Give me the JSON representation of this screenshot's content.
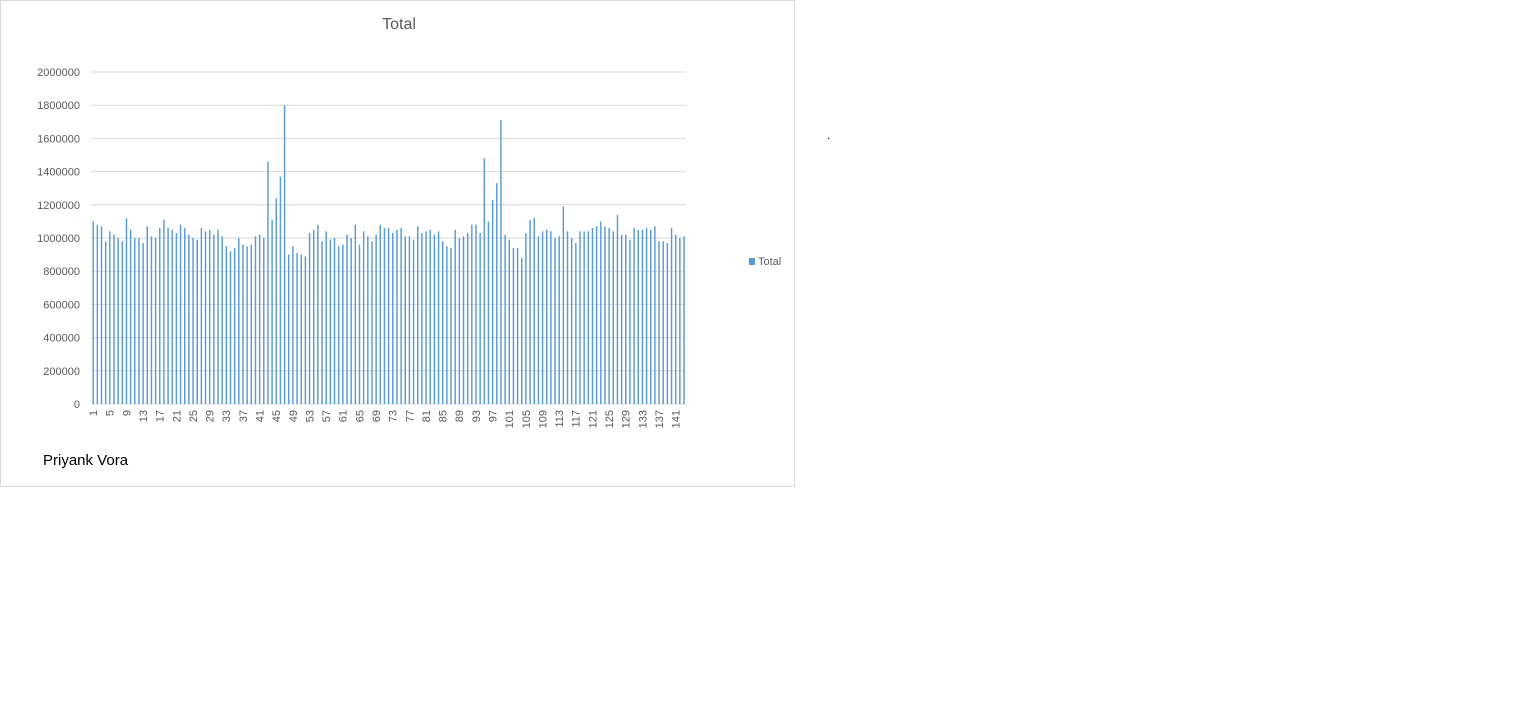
{
  "author": "Priyank Vora",
  "stray_mark": ".",
  "colors": {
    "bar": "#5b9bd5",
    "grid": "#d9d9d9",
    "text": "#595959",
    "border": "#d9d9d9"
  },
  "chart_data": {
    "type": "bar",
    "title": "Total",
    "xlabel": "",
    "ylabel": "",
    "ylim": [
      0,
      2000000
    ],
    "yticks": [
      0,
      200000,
      400000,
      600000,
      800000,
      1000000,
      1200000,
      1400000,
      1600000,
      1800000,
      2000000
    ],
    "x_tick_labels": [
      "1",
      "5",
      "9",
      "13",
      "17",
      "21",
      "25",
      "29",
      "33",
      "37",
      "41",
      "45",
      "49",
      "53",
      "57",
      "61",
      "65",
      "69",
      "73",
      "77",
      "81",
      "85",
      "89",
      "93",
      "97",
      "101",
      "105",
      "109",
      "113",
      "117",
      "121",
      "125",
      "129",
      "133",
      "137",
      "141"
    ],
    "legend": {
      "entries": [
        "Total"
      ],
      "position": "right"
    },
    "grid": true,
    "categories": [
      1,
      2,
      3,
      4,
      5,
      6,
      7,
      8,
      9,
      10,
      11,
      12,
      13,
      14,
      15,
      16,
      17,
      18,
      19,
      20,
      21,
      22,
      23,
      24,
      25,
      26,
      27,
      28,
      29,
      30,
      31,
      32,
      33,
      34,
      35,
      36,
      37,
      38,
      39,
      40,
      41,
      42,
      43,
      44,
      45,
      46,
      47,
      48,
      49,
      50,
      51,
      52,
      53,
      54,
      55,
      56,
      57,
      58,
      59,
      60,
      61,
      62,
      63,
      64,
      65,
      66,
      67,
      68,
      69,
      70,
      71,
      72,
      73,
      74,
      75,
      76,
      77,
      78,
      79,
      80,
      81,
      82,
      83,
      84,
      85,
      86,
      87,
      88,
      89,
      90,
      91,
      92,
      93,
      94,
      95,
      96,
      97,
      98,
      99,
      100,
      101,
      102,
      103,
      104,
      105,
      106,
      107,
      108,
      109,
      110,
      111,
      112,
      113,
      114,
      115,
      116,
      117,
      118,
      119,
      120,
      121,
      122,
      123,
      124,
      125,
      126,
      127,
      128,
      129,
      130,
      131,
      132,
      133,
      134,
      135,
      136,
      137,
      138,
      139,
      140,
      141,
      142,
      143
    ],
    "series": [
      {
        "name": "Total",
        "values": [
          1100000,
          1080000,
          1070000,
          980000,
          1040000,
          1020000,
          1000000,
          980000,
          1120000,
          1050000,
          1000000,
          1000000,
          970000,
          1070000,
          1010000,
          1000000,
          1060000,
          1110000,
          1060000,
          1050000,
          1030000,
          1080000,
          1060000,
          1020000,
          1000000,
          990000,
          1060000,
          1040000,
          1050000,
          1020000,
          1050000,
          1010000,
          950000,
          920000,
          940000,
          1000000,
          960000,
          950000,
          960000,
          1010000,
          1020000,
          1000000,
          1460000,
          1110000,
          1240000,
          1370000,
          1800000,
          900000,
          950000,
          910000,
          900000,
          890000,
          1030000,
          1050000,
          1080000,
          980000,
          1040000,
          990000,
          1000000,
          950000,
          960000,
          1020000,
          1000000,
          1080000,
          960000,
          1040000,
          1010000,
          980000,
          1020000,
          1080000,
          1060000,
          1060000,
          1030000,
          1050000,
          1060000,
          1010000,
          1010000,
          990000,
          1070000,
          1030000,
          1040000,
          1050000,
          1020000,
          1040000,
          980000,
          950000,
          940000,
          1050000,
          1000000,
          1010000,
          1030000,
          1080000,
          1080000,
          1030000,
          1480000,
          1100000,
          1230000,
          1330000,
          1710000,
          1020000,
          990000,
          940000,
          940000,
          880000,
          1030000,
          1110000,
          1120000,
          1010000,
          1040000,
          1050000,
          1040000,
          1000000,
          1010000,
          1190000,
          1040000,
          1000000,
          970000,
          1040000,
          1040000,
          1040000,
          1060000,
          1070000,
          1100000,
          1070000,
          1060000,
          1040000,
          1140000,
          1020000,
          1020000,
          990000,
          1060000,
          1050000,
          1050000,
          1060000,
          1050000,
          1070000,
          980000,
          980000,
          970000,
          1060000,
          1020000,
          1000000,
          1010000
        ]
      }
    ]
  }
}
